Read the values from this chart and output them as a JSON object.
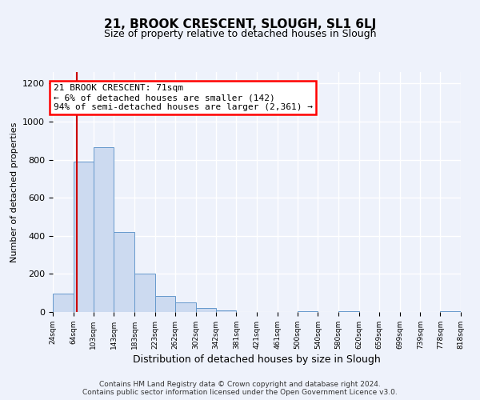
{
  "title": "21, BROOK CRESCENT, SLOUGH, SL1 6LJ",
  "subtitle": "Size of property relative to detached houses in Slough",
  "xlabel": "Distribution of detached houses by size in Slough",
  "ylabel": "Number of detached properties",
  "bar_edges": [
    24,
    64,
    103,
    143,
    183,
    223,
    262,
    302,
    342,
    381,
    421,
    461,
    500,
    540,
    580,
    620,
    659,
    699,
    739,
    778,
    818
  ],
  "bar_heights": [
    95,
    790,
    865,
    420,
    200,
    85,
    52,
    20,
    8,
    0,
    0,
    0,
    5,
    0,
    5,
    0,
    0,
    0,
    0,
    5
  ],
  "bar_color": "#ccdaf0",
  "bar_edge_color": "#6699cc",
  "tick_labels": [
    "24sqm",
    "64sqm",
    "103sqm",
    "143sqm",
    "183sqm",
    "223sqm",
    "262sqm",
    "302sqm",
    "342sqm",
    "381sqm",
    "421sqm",
    "461sqm",
    "500sqm",
    "540sqm",
    "580sqm",
    "620sqm",
    "659sqm",
    "699sqm",
    "739sqm",
    "778sqm",
    "818sqm"
  ],
  "ylim": [
    0,
    1260
  ],
  "yticks": [
    0,
    200,
    400,
    600,
    800,
    1000,
    1200
  ],
  "property_line_x": 71,
  "property_line_color": "#cc0000",
  "annotation_line1": "21 BROOK CRESCENT: 71sqm",
  "annotation_line2": "← 6% of detached houses are smaller (142)",
  "annotation_line3": "94% of semi-detached houses are larger (2,361) →",
  "footer_line1": "Contains HM Land Registry data © Crown copyright and database right 2024.",
  "footer_line2": "Contains public sector information licensed under the Open Government Licence v3.0.",
  "background_color": "#eef2fb",
  "grid_color": "#ffffff"
}
